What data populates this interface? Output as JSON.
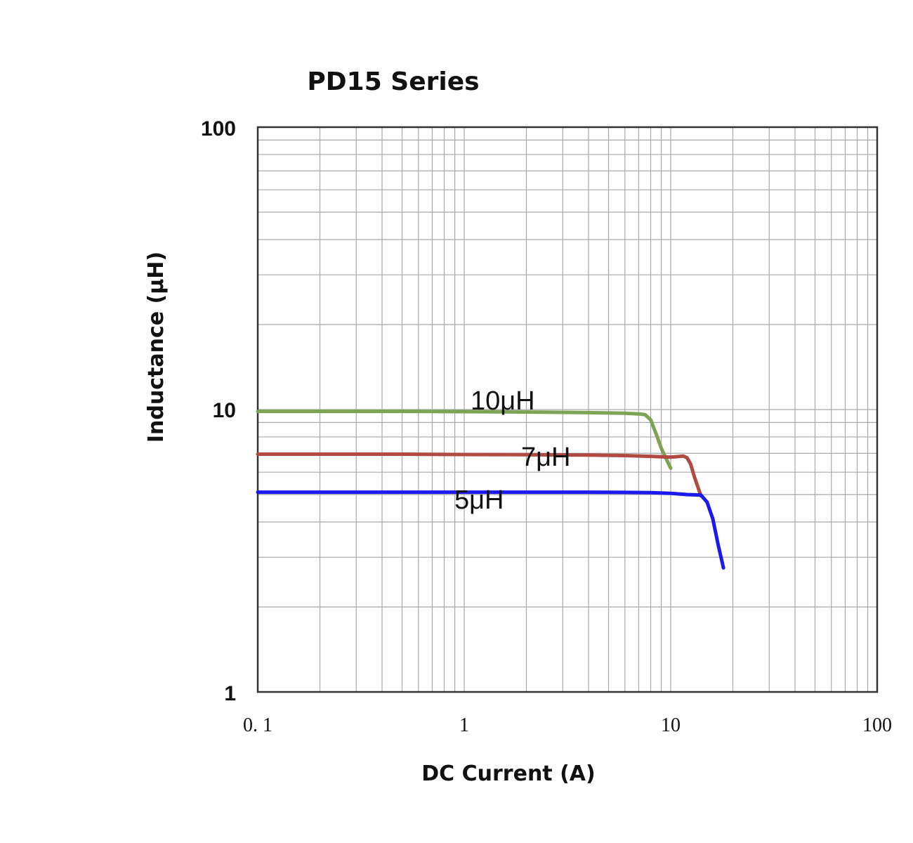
{
  "chart_data": {
    "type": "line",
    "title": "PD15 Series",
    "xlabel": "DC Current (A)",
    "ylabel": "Inductance (μH)",
    "x_scale": "log",
    "y_scale": "log",
    "xlim": [
      0.1,
      100
    ],
    "ylim": [
      1,
      100
    ],
    "x_tick_labels": [
      "0. 1",
      "1",
      "10",
      "100"
    ],
    "y_tick_labels": [
      "100",
      "10",
      "1"
    ],
    "grid": true,
    "series": [
      {
        "name": "10μH",
        "color": "#7da355",
        "x": [
          0.1,
          0.5,
          1,
          2,
          4,
          6,
          7,
          7.5,
          8,
          8.5,
          9,
          9.5,
          10
        ],
        "y": [
          9.85,
          9.85,
          9.83,
          9.8,
          9.75,
          9.7,
          9.65,
          9.6,
          9.2,
          8.2,
          7.3,
          6.7,
          6.2
        ]
      },
      {
        "name": "7μH",
        "color": "#b04a42",
        "x": [
          0.1,
          0.5,
          1,
          2,
          4,
          6,
          8,
          10,
          11,
          11.5,
          12,
          12.5,
          13,
          14
        ],
        "y": [
          6.95,
          6.95,
          6.93,
          6.92,
          6.9,
          6.87,
          6.83,
          6.78,
          6.82,
          6.85,
          6.75,
          6.4,
          5.8,
          4.95
        ]
      },
      {
        "name": "5μH",
        "color": "#1a1aee",
        "x": [
          0.1,
          0.5,
          1,
          2,
          4,
          6,
          8,
          10,
          12,
          14,
          15,
          16,
          17,
          18
        ],
        "y": [
          5.1,
          5.1,
          5.1,
          5.1,
          5.1,
          5.09,
          5.08,
          5.05,
          5.0,
          4.98,
          4.7,
          4.1,
          3.3,
          2.75
        ]
      }
    ]
  }
}
